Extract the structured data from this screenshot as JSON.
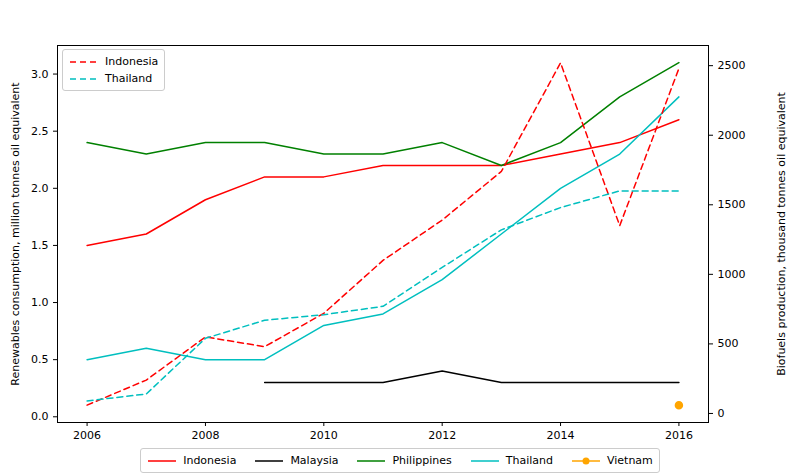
{
  "chart_data": {
    "type": "line",
    "ylabel": "Renewables consumption, million tonnes oil equivalent",
    "y2label": "Biofuels production, thousand tonnes oil equivalent",
    "x": [
      2006,
      2007,
      2008,
      2009,
      2010,
      2011,
      2012,
      2013,
      2014,
      2015,
      2016
    ],
    "xlim": [
      2005.5,
      2016.5
    ],
    "xticks": [
      2006,
      2008,
      2010,
      2012,
      2014,
      2016
    ],
    "ylim": [
      -0.05,
      3.25
    ],
    "yticks": [
      {
        "value": 0,
        "label": "0.0"
      },
      0.5,
      {
        "value": 1,
        "label": "1.0"
      },
      1.5,
      {
        "value": 2,
        "label": "2.0"
      },
      2.5,
      {
        "value": 3,
        "label": "3.0"
      }
    ],
    "y2lim": [
      -65,
      2645
    ],
    "y2ticks": [
      0,
      500,
      1000,
      1500,
      2000,
      2500
    ],
    "legend": "upper left",
    "series": [
      {
        "name": "Indonesia",
        "color": "#ff0000",
        "line_style": "solid",
        "values": [
          1.5,
          1.6,
          1.9,
          2.1,
          2.1,
          2.2,
          2.2,
          2.2,
          2.3,
          2.4,
          2.6
        ]
      },
      {
        "name": "Malaysia",
        "color": "#000000",
        "line_style": "solid",
        "values": [
          null,
          null,
          null,
          0.3,
          0.3,
          0.3,
          0.4,
          0.3,
          0.3,
          0.3,
          0.3
        ]
      },
      {
        "name": "Philippines",
        "color": "#008000",
        "line_style": "solid",
        "values": [
          2.4,
          2.3,
          2.4,
          2.4,
          2.3,
          2.3,
          2.4,
          2.2,
          2.4,
          2.8,
          3.1
        ]
      },
      {
        "name": "Thailand",
        "color": "#00bfbf",
        "line_style": "solid",
        "values": [
          0.5,
          0.6,
          0.5,
          0.5,
          0.8,
          0.9,
          1.2,
          1.6,
          2.0,
          2.3,
          2.8
        ]
      },
      {
        "name": "Vietnam",
        "color": "#ffa500",
        "line_style": "solid",
        "marker": "circle",
        "values": [
          null,
          null,
          null,
          null,
          null,
          null,
          null,
          null,
          null,
          null,
          0.1
        ]
      },
      {
        "name": "Indonesia",
        "color": "#ff0000",
        "line_style": "dashed",
        "axis": "y2",
        "values": [
          60,
          240,
          550,
          480,
          720,
          1100,
          1390,
          1740,
          2520,
          1350,
          2480
        ]
      },
      {
        "name": "Thailand",
        "color": "#00bfbf",
        "line_style": "dashed",
        "axis": "y2",
        "values": [
          90,
          140,
          540,
          670,
          710,
          770,
          1050,
          1320,
          1480,
          1600,
          1600
        ]
      }
    ]
  }
}
